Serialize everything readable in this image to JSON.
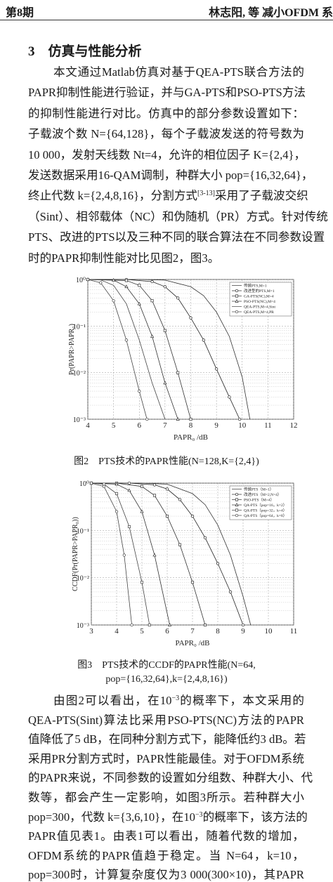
{
  "header": {
    "left": "第8期",
    "right": "林志阳, 等  减小OFDM 系"
  },
  "section": {
    "number": "3",
    "title": "仿真与性能分析"
  },
  "paragraphs": [
    [
      [
        "本文通过Matlab仿真对基于QEA-PTS联合方法的"
      ],
      [
        "PAPR抑制性能进行验证，并与GA-PTS和PSO-PTS方法"
      ],
      [
        "的抑制性能进行对比。仿真中的部分参数设置如下："
      ],
      [
        "子载波个数 N={64,128}，每个子载波发送的符号数为"
      ],
      [
        "10 000，发射天线数 Nt=4，允许的相位因子 K={2,4}，"
      ],
      [
        "发送数据采用16-QAM调制，种群大小 pop={16,32,64}，"
      ],
      [
        "终止代数 k={2,4,8,16}，分割方式",
        "[3-13]",
        "采用了子载波交织"
      ],
      [
        "（Sint）、相邻载体（NC）和伪随机（PR）方式。针对传统"
      ],
      [
        "PTS、改进的PTS以及三种不同的联合算法在不同参数设置"
      ],
      [
        "时的PAPR抑制性能对比见图2，图3。"
      ]
    ],
    [
      [
        "由图2可以看出，在10",
        "−3",
        "的概率下，本文采用的"
      ],
      [
        "QEA-PTS(Sint)算法比采用PSO-PTS(NC)方法的PAPR"
      ],
      [
        "值降低了5 dB，在同种分割方式下，能降低约3 dB。若"
      ],
      [
        "采用PR分割方式时，PAPR性能最佳。对于OFDM系统"
      ],
      [
        "的PAPR来说，不同参数的设置如分组数、种群大小、代"
      ],
      [
        "数等，都会产生一定影响，如图3所示。若种群大小"
      ],
      [
        "pop=300，代数 k={3,6,10}，在10",
        "−3",
        "的概率下，该方法的"
      ],
      [
        "PAPR值见表1。由表1可以看出，随着代数的增加，"
      ],
      [
        "OFDM系统的PAPR值趋于稳定。当 N=64，k=10，"
      ],
      [
        "pop=300时，计算复杂度仅为3 000(300×10)，其PAPR"
      ]
    ]
  ],
  "figures": [
    {
      "chart_data": {
        "type": "line",
        "xlabel": "PAPR₀ /dB",
        "ylabel": "Pr(PAPR>PAPR₀)",
        "xlim": [
          4,
          12
        ],
        "ylim": [
          0.001,
          1
        ],
        "log_y": true,
        "grid": true,
        "legend": "upper right",
        "xticks": [
          4,
          5,
          6,
          7,
          8,
          9,
          10,
          11,
          12
        ],
        "yticks": [
          {
            "value": 1,
            "label": "10⁰"
          },
          {
            "value": 0.1,
            "label": "10⁻¹"
          },
          {
            "value": 0.01,
            "label": "10⁻²"
          },
          {
            "value": 0.001,
            "label": "10⁻³"
          }
        ],
        "series": [
          {
            "name": "传统PTS,M=1",
            "color": "#333333",
            "marker": "none",
            "x": [
              4,
              6,
              7,
              8,
              8.5,
              9,
              9.5,
              10,
              10.3
            ],
            "values": [
              1,
              1,
              0.97,
              0.7,
              0.45,
              0.2,
              0.06,
              0.008,
              0.001
            ]
          },
          {
            "name": "改进型的PTS,M=1",
            "color": "#222222",
            "marker": "circle",
            "x": [
              4,
              5.5,
              6.5,
              7,
              7.5,
              8,
              8.5,
              9,
              9.5,
              9.9
            ],
            "values": [
              1,
              1,
              0.9,
              0.7,
              0.4,
              0.15,
              0.05,
              0.012,
              0.003,
              0.001
            ]
          },
          {
            "name": "GA-PTS(NC),M=4",
            "color": "#333333",
            "marker": "square",
            "x": [
              4,
              5.5,
              6,
              6.5,
              7,
              7.5,
              8
            ],
            "values": [
              1,
              0.95,
              0.75,
              0.35,
              0.08,
              0.01,
              0.001
            ]
          },
          {
            "name": "PSO-PTS(NC),M=4",
            "color": "#333333",
            "marker": "triangle",
            "x": [
              4,
              5,
              5.5,
              6,
              6.5,
              7,
              7.5
            ],
            "values": [
              1,
              0.97,
              0.7,
              0.3,
              0.06,
              0.006,
              0.001
            ]
          },
          {
            "name": "QEA-PTS,M=4,Sint",
            "color": "#444444",
            "marker": "none",
            "x": [
              4,
              4.5,
              5,
              5.5,
              6,
              6.5,
              7
            ],
            "values": [
              1,
              0.98,
              0.75,
              0.3,
              0.05,
              0.006,
              0.001
            ]
          },
          {
            "name": "QEA-PTS,M=4,PR",
            "color": "#444444",
            "marker": "circle",
            "x": [
              4,
              4.5,
              5,
              5.5,
              6,
              6.3
            ],
            "values": [
              1,
              0.85,
              0.35,
              0.05,
              0.004,
              0.001
            ]
          }
        ]
      },
      "caption": [
        "图2　PTS技术的PAPR性能(N=128,K={2,4})"
      ]
    },
    {
      "chart_data": {
        "type": "line",
        "xlabel": "PAPR₀ /dB",
        "ylabel": "CCDF(Pr(PAPR>PAPR₀))",
        "xlim": [
          3,
          11
        ],
        "ylim": [
          0.001,
          1
        ],
        "log_y": true,
        "grid": true,
        "legend": "upper right",
        "xticks": [
          3,
          4,
          5,
          6,
          7,
          8,
          9,
          10,
          11
        ],
        "yticks": [
          {
            "value": 1,
            "label": "10⁰"
          },
          {
            "value": 0.1,
            "label": "10⁻¹"
          },
          {
            "value": 0.01,
            "label": "10⁻²"
          },
          {
            "value": 0.001,
            "label": "10⁻³"
          }
        ],
        "series": [
          {
            "name": "传统PTS（M=1）",
            "color": "#333333",
            "marker": "none",
            "x": [
              3,
              5,
              6,
              7,
              7.5,
              8,
              8.5,
              9,
              9.3
            ],
            "values": [
              1,
              1,
              0.95,
              0.6,
              0.35,
              0.13,
              0.03,
              0.004,
              0.001
            ]
          },
          {
            "name": "改进PTS（M=2,N=4）",
            "color": "#222222",
            "marker": "circle",
            "x": [
              3,
              4.5,
              5.5,
              6,
              6.5,
              7,
              7.5,
              8,
              8.5,
              9
            ],
            "values": [
              1,
              1,
              0.92,
              0.75,
              0.45,
              0.2,
              0.07,
              0.02,
              0.005,
              0.001
            ]
          },
          {
            "name": "PSO-PTS（M=4）",
            "color": "#333333",
            "marker": "square",
            "x": [
              3,
              4,
              5,
              5.5,
              6,
              6.5,
              7,
              7.5
            ],
            "values": [
              1,
              1,
              0.85,
              0.55,
              0.2,
              0.05,
              0.008,
              0.001
            ]
          },
          {
            "name": "QA-PTS（pop=16，k=2）",
            "color": "#333333",
            "marker": "triangle",
            "x": [
              3,
              4,
              4.5,
              5,
              5.5,
              6.1
            ],
            "values": [
              1,
              0.95,
              0.7,
              0.25,
              0.03,
              0.001
            ]
          },
          {
            "name": "QA-PTS（pop=32，k=4）",
            "color": "#444444",
            "marker": "square",
            "x": [
              3,
              3.5,
              4,
              4.5,
              5,
              5.3
            ],
            "values": [
              1,
              0.95,
              0.6,
              0.12,
              0.008,
              0.001
            ]
          },
          {
            "name": "QA-PTS（pop=64，k=8）",
            "color": "#444444",
            "marker": "circle",
            "x": [
              3,
              3.5,
              4,
              4.3,
              4.6
            ],
            "values": [
              1,
              0.85,
              0.25,
              0.03,
              0.001
            ]
          }
        ]
      },
      "caption": [
        "图3　PTS技术的CCDF的PAPR性能(N=64,",
        "pop={16,32,64},k={2,4,8,16})"
      ]
    }
  ]
}
